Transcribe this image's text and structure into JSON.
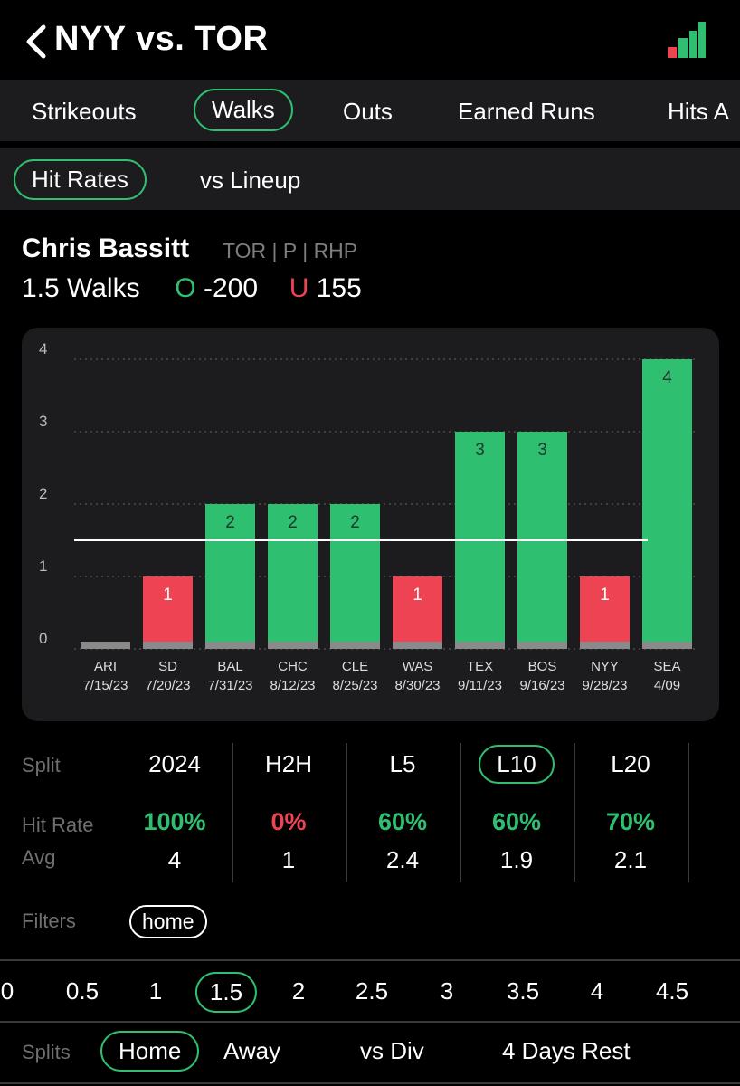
{
  "header": {
    "title": "NYY vs. TOR"
  },
  "tabs": [
    "Strikeouts",
    "Walks",
    "Outs",
    "Earned Runs",
    "Hits A"
  ],
  "subtabs": [
    "Hit Rates",
    "vs Lineup"
  ],
  "player": {
    "name": "Chris Bassitt",
    "meta": "TOR | P | RHP",
    "line_label": "1.5 Walks",
    "over_symbol": "O",
    "over_odds": "-200",
    "under_symbol": "U",
    "under_odds": "155"
  },
  "colors": {
    "hit": "#2fbf71",
    "miss": "#ee4352",
    "push": "#8a8a8a",
    "card": "#1c1c1e"
  },
  "chart_data": {
    "type": "bar",
    "categories": [
      "ARI",
      "SD",
      "BAL",
      "CHC",
      "CLE",
      "WAS",
      "TEX",
      "BOS",
      "NYY",
      "SEA"
    ],
    "dates": [
      "7/15/23",
      "7/20/23",
      "7/31/23",
      "8/12/23",
      "8/25/23",
      "8/30/23",
      "9/11/23",
      "9/16/23",
      "9/28/23",
      "4/09"
    ],
    "values": [
      0,
      1,
      2,
      2,
      2,
      1,
      3,
      3,
      1,
      4
    ],
    "line": 1.5,
    "ylim": [
      0,
      4
    ],
    "yticks": [
      0,
      1,
      2,
      3,
      4
    ],
    "grid": true
  },
  "stats": {
    "split_label": "Split",
    "hit_rate_label": "Hit Rate",
    "avg_label": "Avg",
    "columns": [
      {
        "header": "2024",
        "hit_rate": "100%",
        "avg": "4",
        "status": "green"
      },
      {
        "header": "H2H",
        "hit_rate": "0%",
        "avg": "1",
        "status": "red"
      },
      {
        "header": "L5",
        "hit_rate": "60%",
        "avg": "2.4",
        "status": "green"
      },
      {
        "header": "L10",
        "hit_rate": "60%",
        "avg": "1.9",
        "status": "green"
      },
      {
        "header": "L20",
        "hit_rate": "70%",
        "avg": "2.1",
        "status": "green"
      }
    ]
  },
  "filters": {
    "label": "Filters",
    "active": "home"
  },
  "lines": [
    "0",
    "0.5",
    "1",
    "1.5",
    "2",
    "2.5",
    "3",
    "3.5",
    "4",
    "4.5"
  ],
  "splits": {
    "label": "Splits",
    "items": [
      "Home",
      "Away",
      "vs Div",
      "4 Days Rest"
    ]
  }
}
